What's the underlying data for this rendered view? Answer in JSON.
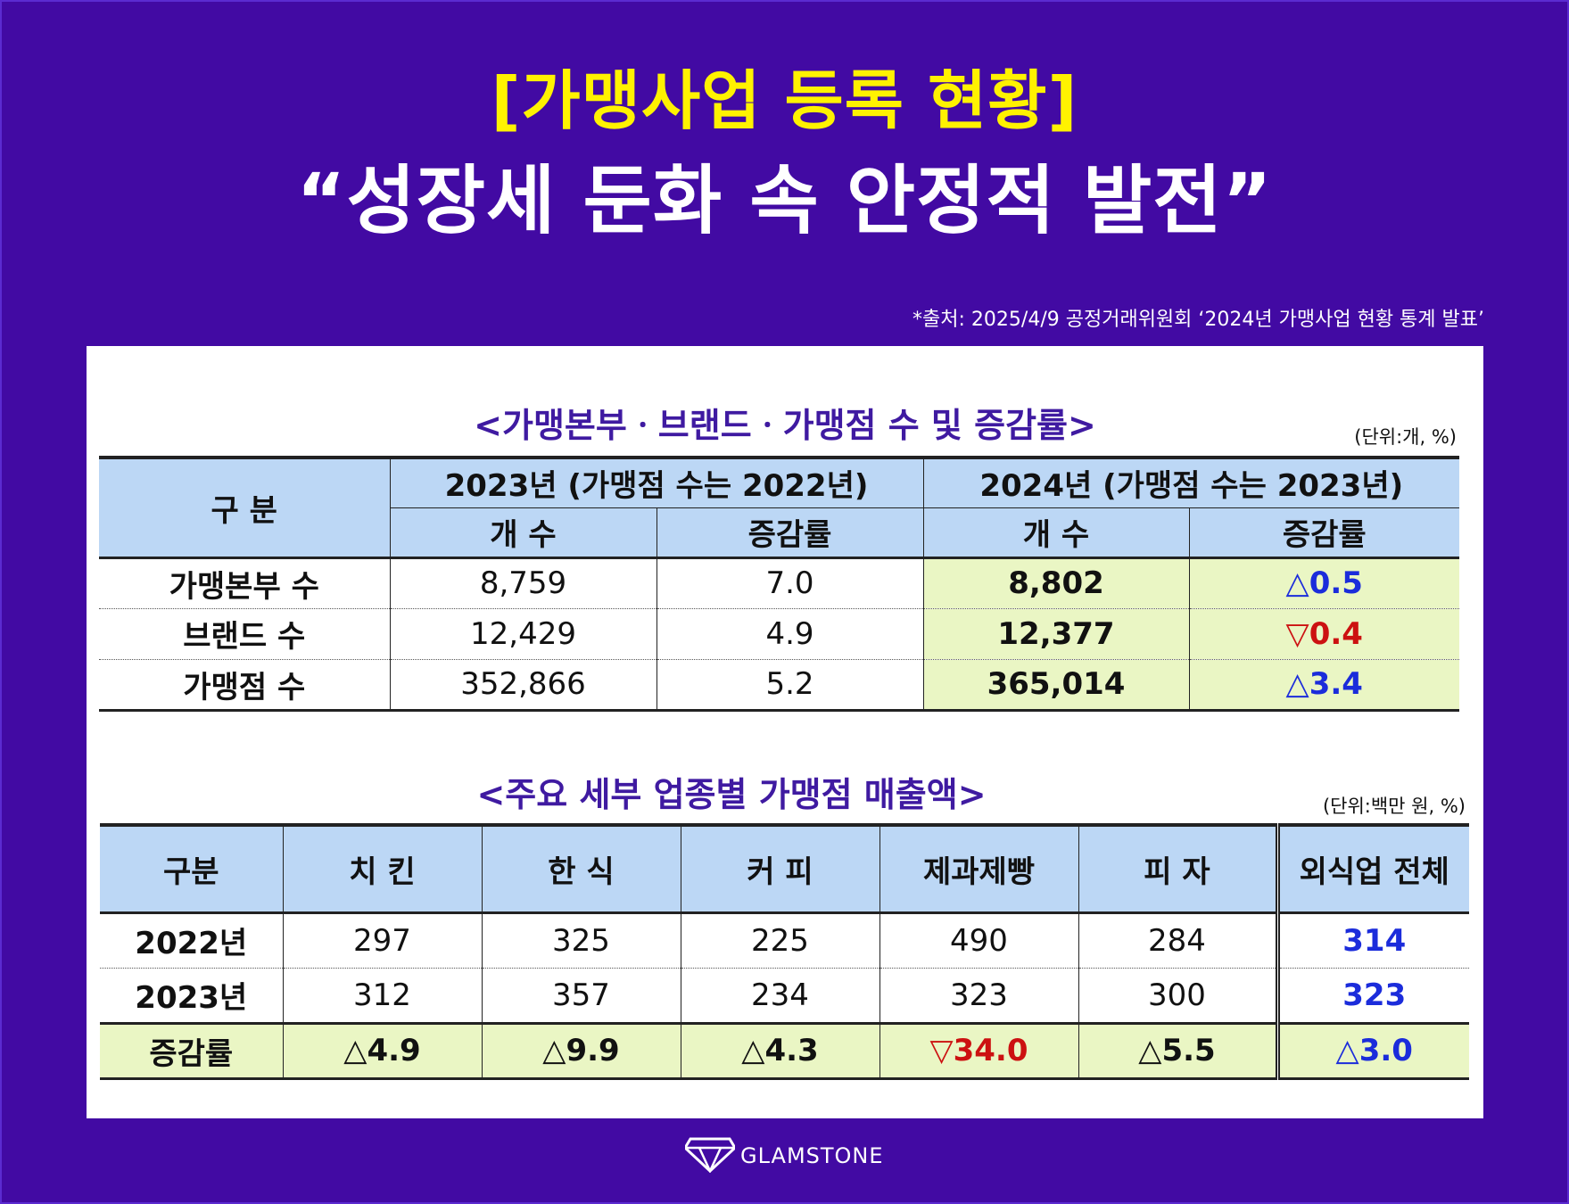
{
  "header": {
    "kicker": "[가맹사업 등록 현황]",
    "headline": "“성장세 둔화 속 안정적 발전”",
    "source": "*출처: 2025/4/9 공정거래위원회 ‘2024년 가맹사업 현황 통계 발표’"
  },
  "table1": {
    "title": "<가맹본부ㆍ브랜드ㆍ가맹점 수 및 증감률>",
    "unit": "(단위:개,  %)",
    "col_category": "구 분",
    "group_2023": "2023년 (가맹점 수는 2022년)",
    "group_2024": "2024년 (가맹점 수는 2023년)",
    "sub_count": "개 수",
    "sub_rate": "증감률",
    "rows": [
      {
        "label": "가맹본부 수",
        "c2023": "8,759",
        "r2023": "7.0",
        "c2024": "8,802",
        "r2024": "△0.5"
      },
      {
        "label": "브랜드 수",
        "c2023": "12,429",
        "r2023": "4.9",
        "c2024": "12,377",
        "r2024": "▽0.4"
      },
      {
        "label": "가맹점 수",
        "c2023": "352,866",
        "r2023": "5.2",
        "c2024": "365,014",
        "r2024": "△3.4"
      }
    ]
  },
  "table2": {
    "title": "<주요 세부 업종별 가맹점 매출액>",
    "unit": "(단위:백만 원,  %)",
    "headers": [
      "구분",
      "치 킨",
      "한 식",
      "커 피",
      "제과제빵",
      "피 자",
      "외식업 전체"
    ],
    "rows": [
      {
        "label": "2022년",
        "values": [
          "297",
          "325",
          "225",
          "490",
          "284",
          "314"
        ]
      },
      {
        "label": "2023년",
        "values": [
          "312",
          "357",
          "234",
          "323",
          "300",
          "323"
        ]
      },
      {
        "label": "증감률",
        "values": [
          "△4.9",
          "△9.9",
          "△4.3",
          "▽34.0",
          "△5.5",
          "△3.0"
        ]
      }
    ]
  },
  "brand": {
    "logo_icon": "diamond-icon",
    "name": "GLAMSTONE"
  },
  "colors": {
    "background": "#420aa3",
    "kicker": "#fff200",
    "header_fill": "#bcd7f5",
    "highlight_fill": "#eaf6c4",
    "increase": "#1b2cdb",
    "decrease": "#cc1111"
  }
}
